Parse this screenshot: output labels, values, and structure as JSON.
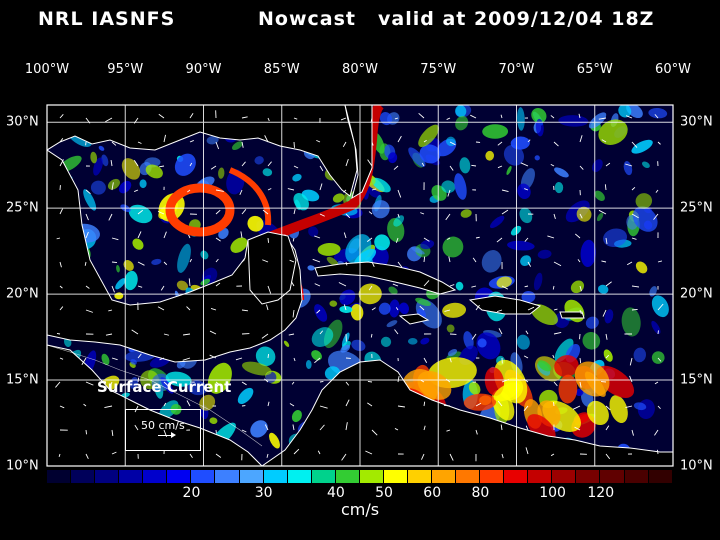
{
  "title": {
    "left": "NRL IASNFS",
    "middle": "Nowcast",
    "right": "valid at 2009/12/04 18Z"
  },
  "map": {
    "longitude_labels": [
      "100°W",
      "95°W",
      "90°W",
      "85°W",
      "80°W",
      "75°W",
      "70°W",
      "65°W",
      "60°W"
    ],
    "latitude_labels": [
      "30°N",
      "25°N",
      "20°N",
      "15°N",
      "10°N"
    ],
    "extent": {
      "lon_min": -100,
      "lon_max": -60,
      "lat_min": 10,
      "lat_max": 31
    },
    "colors": {
      "ocean_bg": "#000033",
      "land": "#000000",
      "coast": "#ffffff",
      "grid": "#ffffff"
    }
  },
  "legend": {
    "title": "Surface Current",
    "scale_label": "50 cm/s"
  },
  "colorbar": {
    "units": "cm/s",
    "tick_labels": [
      "20",
      "30",
      "40",
      "50",
      "60",
      "80",
      "100",
      "120"
    ],
    "colors": [
      "#000030",
      "#00005a",
      "#000080",
      "#0000a6",
      "#0000cc",
      "#0000f2",
      "#1f4dff",
      "#3d80ff",
      "#4ca6ff",
      "#00ccff",
      "#00f0f0",
      "#00d28c",
      "#33cc33",
      "#a3ea00",
      "#ffff00",
      "#ffd000",
      "#ffa400",
      "#ff7800",
      "#ff3c00",
      "#e80000",
      "#c40000",
      "#9c0000",
      "#780000",
      "#600000",
      "#4a0000",
      "#320000"
    ]
  }
}
